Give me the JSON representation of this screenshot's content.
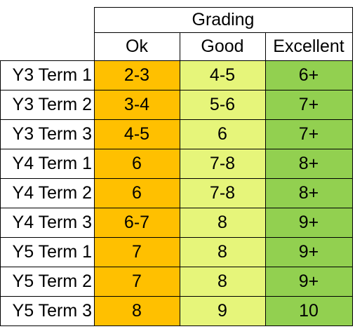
{
  "table": {
    "header": "Grading",
    "columns": [
      "Ok",
      "Good",
      "Excellent"
    ],
    "column_colors": [
      "#ffc000",
      "#e6f57a",
      "#92d050"
    ],
    "rows": [
      {
        "label": "Y3 Term 1",
        "values": [
          "2-3",
          "4-5",
          "6+"
        ]
      },
      {
        "label": "Y3 Term 2",
        "values": [
          "3-4",
          "5-6",
          "7+"
        ]
      },
      {
        "label": "Y3 Term 3",
        "values": [
          "4-5",
          "6",
          "7+"
        ]
      },
      {
        "label": "Y4 Term 1",
        "values": [
          "6",
          "7-8",
          "8+"
        ]
      },
      {
        "label": "Y4 Term 2",
        "values": [
          "6",
          "7-8",
          "8+"
        ]
      },
      {
        "label": "Y4 Term 3",
        "values": [
          "6-7",
          "8",
          "9+"
        ]
      },
      {
        "label": "Y5 Term 1",
        "values": [
          "7",
          "8",
          "9+"
        ]
      },
      {
        "label": "Y5 Term 2",
        "values": [
          "7",
          "8",
          "9+"
        ]
      },
      {
        "label": "Y5 Term 3",
        "values": [
          "8",
          "9",
          "10"
        ]
      }
    ]
  }
}
